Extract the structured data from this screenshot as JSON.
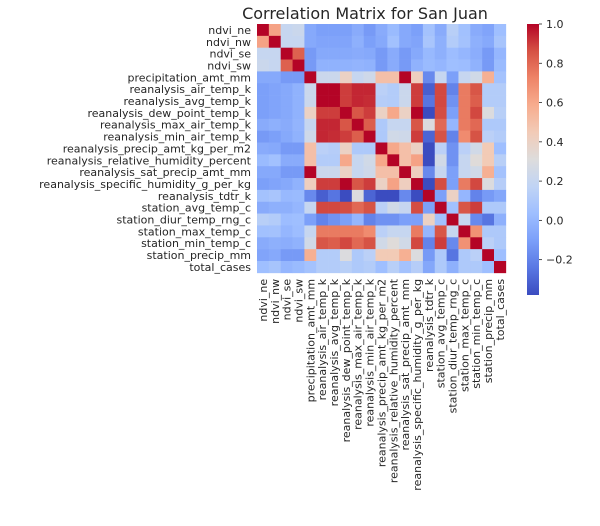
{
  "chart_data": {
    "type": "heatmap",
    "title": "Correlation Matrix for San Juan",
    "xlabel": "",
    "ylabel": "",
    "labels": [
      "ndvi_ne",
      "ndvi_nw",
      "ndvi_se",
      "ndvi_sw",
      "precipitation_amt_mm",
      "reanalysis_air_temp_k",
      "reanalysis_avg_temp_k",
      "reanalysis_dew_point_temp_k",
      "reanalysis_max_air_temp_k",
      "reanalysis_min_air_temp_k",
      "reanalysis_precip_amt_kg_per_m2",
      "reanalysis_relative_humidity_percent",
      "reanalysis_sat_precip_amt_mm",
      "reanalysis_specific_humidity_g_per_kg",
      "reanalysis_tdtr_k",
      "station_avg_temp_c",
      "station_diur_temp_rng_c",
      "station_max_temp_c",
      "station_min_temp_c",
      "station_precip_mm",
      "total_cases"
    ],
    "matrix": [
      [
        1.0,
        0.62,
        0.2,
        0.22,
        -0.06,
        -0.1,
        -0.1,
        -0.1,
        -0.05,
        -0.12,
        -0.05,
        0.02,
        -0.06,
        -0.1,
        0.06,
        -0.05,
        0.14,
        0.05,
        -0.05,
        -0.08,
        0.04
      ],
      [
        0.62,
        1.0,
        0.2,
        0.2,
        -0.06,
        -0.08,
        -0.08,
        -0.08,
        -0.03,
        -0.1,
        -0.06,
        0.05,
        -0.06,
        -0.08,
        0.08,
        -0.03,
        0.12,
        0.06,
        -0.03,
        -0.06,
        0.07
      ],
      [
        0.2,
        0.2,
        1.0,
        0.82,
        -0.12,
        -0.06,
        -0.06,
        -0.06,
        -0.05,
        -0.06,
        -0.12,
        -0.05,
        -0.12,
        -0.06,
        0.01,
        -0.03,
        0.03,
        0.0,
        -0.04,
        -0.12,
        0.0
      ],
      [
        0.22,
        0.2,
        0.82,
        1.0,
        -0.12,
        -0.02,
        -0.02,
        -0.02,
        -0.01,
        -0.02,
        -0.12,
        -0.05,
        -0.12,
        -0.02,
        0.02,
        0.0,
        0.04,
        0.03,
        -0.02,
        -0.12,
        0.02
      ],
      [
        -0.06,
        -0.06,
        -0.12,
        -0.12,
        1.0,
        0.22,
        0.22,
        0.4,
        0.2,
        0.24,
        0.5,
        0.5,
        1.0,
        0.42,
        -0.18,
        0.2,
        -0.1,
        0.2,
        0.25,
        0.57,
        0.06
      ],
      [
        -0.1,
        -0.08,
        -0.06,
        -0.02,
        0.22,
        1.0,
        1.0,
        0.9,
        0.94,
        0.94,
        0.15,
        0.12,
        0.22,
        0.9,
        -0.32,
        0.88,
        -0.2,
        0.75,
        0.85,
        0.12,
        0.12
      ],
      [
        -0.1,
        -0.08,
        -0.06,
        -0.02,
        0.22,
        1.0,
        1.0,
        0.9,
        0.94,
        0.93,
        0.13,
        0.12,
        0.22,
        0.9,
        -0.25,
        0.88,
        -0.15,
        0.75,
        0.83,
        0.12,
        0.12
      ],
      [
        -0.1,
        -0.08,
        -0.06,
        -0.02,
        0.4,
        0.9,
        0.9,
        1.0,
        0.85,
        0.9,
        0.4,
        0.6,
        0.4,
        1.0,
        -0.38,
        0.87,
        -0.1,
        0.75,
        0.88,
        0.3,
        0.14
      ],
      [
        -0.05,
        -0.03,
        -0.05,
        -0.01,
        0.2,
        0.94,
        0.94,
        0.85,
        1.0,
        0.83,
        0.1,
        0.2,
        0.2,
        0.85,
        0.3,
        0.8,
        0.0,
        0.75,
        0.8,
        0.1,
        0.1
      ],
      [
        -0.12,
        -0.1,
        -0.06,
        -0.02,
        0.24,
        0.94,
        0.93,
        0.9,
        0.83,
        1.0,
        0.1,
        0.25,
        0.24,
        0.9,
        -0.3,
        0.86,
        -0.2,
        0.7,
        0.86,
        0.15,
        0.12
      ],
      [
        -0.05,
        -0.06,
        -0.12,
        -0.12,
        0.5,
        0.15,
        0.13,
        0.4,
        0.1,
        0.1,
        1.0,
        0.6,
        0.5,
        0.4,
        -0.38,
        0.15,
        -0.15,
        0.15,
        0.25,
        0.45,
        0.04
      ],
      [
        0.02,
        0.05,
        -0.05,
        -0.05,
        0.5,
        0.12,
        0.12,
        0.6,
        0.2,
        0.25,
        0.6,
        1.0,
        0.5,
        0.62,
        -0.38,
        0.25,
        -0.15,
        0.2,
        0.32,
        0.45,
        0.14
      ],
      [
        -0.06,
        -0.06,
        -0.12,
        -0.12,
        1.0,
        0.22,
        0.22,
        0.4,
        0.2,
        0.24,
        0.5,
        0.5,
        1.0,
        0.42,
        -0.18,
        0.2,
        -0.1,
        0.2,
        0.25,
        0.57,
        0.06
      ],
      [
        -0.1,
        -0.08,
        -0.06,
        -0.02,
        0.42,
        0.9,
        0.9,
        1.0,
        0.85,
        0.9,
        0.4,
        0.62,
        0.42,
        1.0,
        -0.38,
        0.87,
        -0.1,
        0.75,
        0.88,
        0.3,
        0.13
      ],
      [
        0.06,
        0.08,
        0.01,
        0.02,
        -0.18,
        -0.32,
        -0.25,
        -0.38,
        0.3,
        -0.3,
        -0.38,
        -0.38,
        -0.18,
        -0.38,
        1.0,
        -0.1,
        0.4,
        0.0,
        -0.2,
        -0.12,
        -0.07
      ],
      [
        -0.05,
        -0.03,
        -0.03,
        0.0,
        0.2,
        0.88,
        0.88,
        0.87,
        0.8,
        0.86,
        0.15,
        0.25,
        0.2,
        0.87,
        -0.1,
        1.0,
        0.05,
        0.85,
        0.9,
        0.1,
        0.1
      ],
      [
        0.14,
        0.12,
        0.03,
        0.04,
        -0.1,
        -0.2,
        -0.15,
        -0.1,
        0.0,
        -0.2,
        -0.15,
        -0.15,
        -0.1,
        -0.1,
        0.4,
        0.05,
        1.0,
        0.2,
        -0.18,
        -0.25,
        -0.03
      ],
      [
        0.05,
        0.06,
        0.0,
        0.03,
        0.2,
        0.75,
        0.75,
        0.75,
        0.75,
        0.7,
        0.15,
        0.2,
        0.2,
        0.75,
        0.0,
        0.85,
        0.2,
        1.0,
        0.68,
        0.1,
        0.1
      ],
      [
        -0.05,
        -0.03,
        -0.04,
        -0.02,
        0.25,
        0.85,
        0.83,
        0.88,
        0.8,
        0.86,
        0.25,
        0.32,
        0.25,
        0.88,
        -0.2,
        0.9,
        -0.18,
        0.68,
        1.0,
        0.15,
        0.1
      ],
      [
        -0.08,
        -0.06,
        -0.12,
        -0.12,
        0.57,
        0.12,
        0.12,
        0.3,
        0.1,
        0.15,
        0.45,
        0.45,
        0.57,
        0.3,
        -0.12,
        0.1,
        -0.25,
        0.1,
        0.15,
        1.0,
        0.04
      ],
      [
        0.04,
        0.07,
        0.0,
        0.02,
        0.06,
        0.12,
        0.12,
        0.14,
        0.1,
        0.12,
        0.04,
        0.14,
        0.06,
        0.13,
        -0.07,
        0.1,
        -0.03,
        0.1,
        0.1,
        0.04,
        1.0
      ]
    ],
    "colorbar": {
      "vmin": -0.38,
      "vmax": 1.0,
      "ticks": [
        "1.0",
        "0.8",
        "0.6",
        "0.4",
        "0.2",
        "0.0",
        "−0.2"
      ],
      "tick_values": [
        1.0,
        0.8,
        0.6,
        0.4,
        0.2,
        0.0,
        -0.2
      ]
    },
    "colormap": [
      "#3b4cc0",
      "#5977e3",
      "#7b9ff9",
      "#9ebeff",
      "#c0d4f5",
      "#dddcdc",
      "#f2cbb7",
      "#f7ac8e",
      "#ee8468",
      "#d65244",
      "#b40426"
    ],
    "grid": false
  }
}
